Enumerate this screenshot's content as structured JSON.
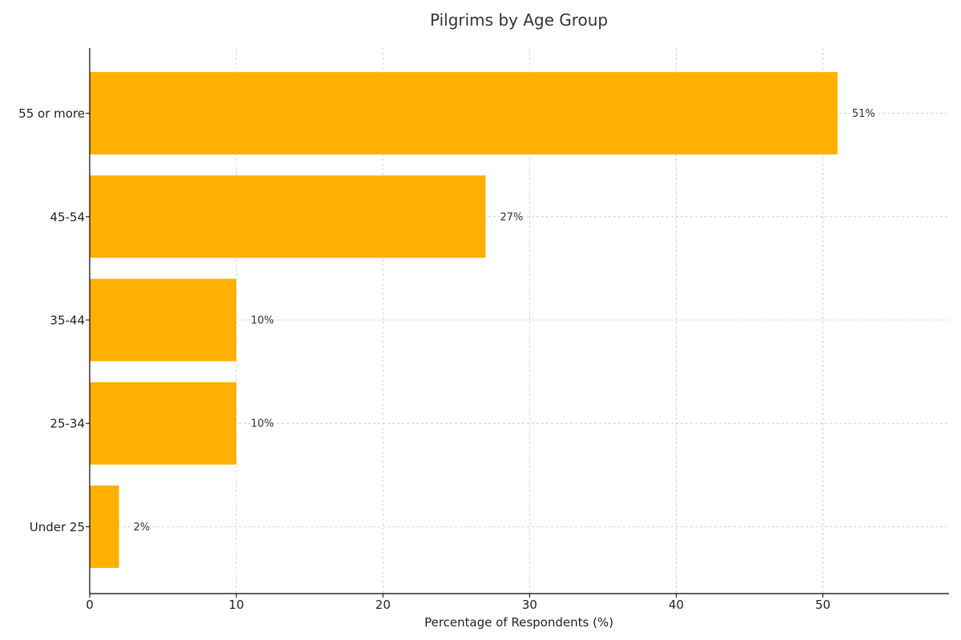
{
  "chart_data": {
    "type": "bar",
    "orientation": "horizontal",
    "title": "Pilgrims by Age Group",
    "xlabel": "Percentage of Respondents (%)",
    "ylabel": "",
    "categories": [
      "55 or more",
      "45-54",
      "35-44",
      "25-34",
      "Under 25"
    ],
    "values": [
      51,
      27,
      10,
      10,
      2
    ],
    "data_labels": [
      "51%",
      "27%",
      "10%",
      "10%",
      "2%"
    ],
    "xlim": [
      0,
      58.6
    ],
    "xticks": [
      0,
      10,
      20,
      30,
      40,
      50
    ],
    "grid": true,
    "legend": "none",
    "bar_color": "#FFB000"
  }
}
